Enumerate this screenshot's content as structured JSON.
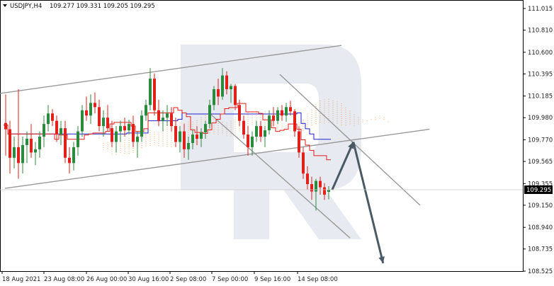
{
  "header": {
    "symbol": "USDJPY,H4",
    "ohlc": "109.277 109.331 109.205 109.295"
  },
  "colors": {
    "bull": "#2b8a3e",
    "bear": "#e0201b",
    "tenkan": "#e0201b",
    "kijun": "#1f22c8",
    "cloud": "#f4a460",
    "trendline": "#9a9a9a",
    "arrow": "#4a5a64",
    "watermark": "#e7ebf1",
    "price_tag_bg": "#000000"
  },
  "chart_data": {
    "type": "candlestick",
    "indicator": "ichimoku",
    "x_labels": [
      "18 Aug 2021",
      "23 Aug 08:00",
      "26 Aug 00:00",
      "30 Aug 16:00",
      "2 Sep 08:00",
      "7 Sep 00:00",
      "9 Sep 16:00",
      "14 Sep 08:00"
    ],
    "y_ticks": [
      "111.015",
      "110.810",
      "110.600",
      "110.395",
      "110.185",
      "109.980",
      "109.770",
      "109.565",
      "109.355",
      "109.150",
      "108.940",
      "108.735",
      "108.525"
    ],
    "ylim": [
      108.525,
      111.015
    ],
    "current_price": "109.295",
    "candles": [
      [
        109.93,
        110.2,
        109.62,
        109.87
      ],
      [
        109.87,
        109.95,
        109.45,
        109.6
      ],
      [
        109.6,
        109.8,
        109.5,
        109.7
      ],
      [
        109.7,
        110.25,
        109.4,
        109.55
      ],
      [
        109.55,
        109.8,
        109.45,
        109.72
      ],
      [
        109.72,
        109.85,
        109.55,
        109.78
      ],
      [
        109.78,
        109.92,
        109.6,
        109.65
      ],
      [
        109.65,
        109.75,
        109.53,
        109.68
      ],
      [
        109.68,
        109.85,
        109.6,
        109.8
      ],
      [
        109.8,
        110.0,
        109.7,
        109.92
      ],
      [
        109.92,
        110.1,
        109.85,
        110.02
      ],
      [
        110.02,
        110.06,
        109.9,
        109.95
      ],
      [
        109.95,
        110.0,
        109.75,
        109.82
      ],
      [
        109.82,
        109.95,
        109.72,
        109.88
      ],
      [
        109.88,
        109.95,
        109.55,
        109.6
      ],
      [
        109.6,
        109.7,
        109.45,
        109.55
      ],
      [
        109.55,
        109.75,
        109.48,
        109.7
      ],
      [
        109.7,
        109.9,
        109.62,
        109.85
      ],
      [
        109.85,
        110.1,
        109.8,
        110.05
      ],
      [
        110.05,
        110.18,
        109.95,
        110.0
      ],
      [
        110.0,
        110.2,
        109.92,
        110.12
      ],
      [
        110.12,
        110.22,
        110.02,
        110.08
      ],
      [
        110.08,
        110.15,
        109.85,
        109.9
      ],
      [
        109.9,
        110.05,
        109.8,
        109.98
      ],
      [
        109.98,
        110.1,
        109.85,
        109.88
      ],
      [
        109.88,
        109.95,
        109.7,
        109.75
      ],
      [
        109.75,
        109.9,
        109.65,
        109.85
      ],
      [
        109.85,
        109.95,
        109.75,
        109.9
      ],
      [
        109.9,
        109.98,
        109.8,
        109.86
      ],
      [
        109.86,
        109.96,
        109.82,
        109.92
      ],
      [
        109.92,
        110.0,
        109.7,
        109.75
      ],
      [
        109.75,
        109.85,
        109.6,
        109.8
      ],
      [
        109.8,
        110.05,
        109.75,
        110.0
      ],
      [
        110.0,
        110.15,
        109.95,
        110.1
      ],
      [
        110.1,
        110.45,
        110.05,
        110.35
      ],
      [
        110.35,
        110.4,
        110.0,
        110.05
      ],
      [
        110.05,
        110.15,
        109.9,
        109.95
      ],
      [
        109.95,
        110.05,
        109.85,
        109.98
      ],
      [
        109.98,
        110.1,
        109.9,
        110.02
      ],
      [
        110.02,
        110.08,
        109.85,
        109.9
      ],
      [
        109.9,
        109.98,
        109.7,
        109.75
      ],
      [
        109.75,
        109.9,
        109.65,
        109.85
      ],
      [
        109.85,
        109.92,
        109.6,
        109.68
      ],
      [
        109.68,
        109.8,
        109.58,
        109.74
      ],
      [
        109.74,
        109.86,
        109.68,
        109.82
      ],
      [
        109.82,
        109.9,
        109.72,
        109.78
      ],
      [
        109.78,
        109.88,
        109.7,
        109.84
      ],
      [
        109.84,
        109.95,
        109.78,
        109.92
      ],
      [
        109.92,
        110.15,
        109.88,
        110.1
      ],
      [
        110.1,
        110.28,
        110.05,
        110.25
      ],
      [
        110.25,
        110.35,
        110.1,
        110.18
      ],
      [
        110.18,
        110.45,
        110.15,
        110.38
      ],
      [
        110.38,
        110.42,
        110.2,
        110.25
      ],
      [
        110.25,
        110.3,
        110.12,
        110.28
      ],
      [
        110.28,
        110.3,
        110.05,
        110.1
      ],
      [
        110.1,
        110.15,
        109.9,
        109.95
      ],
      [
        109.95,
        110.0,
        109.78,
        109.82
      ],
      [
        109.82,
        109.9,
        109.62,
        109.7
      ],
      [
        109.7,
        109.85,
        109.62,
        109.8
      ],
      [
        109.8,
        109.95,
        109.75,
        109.9
      ],
      [
        109.9,
        109.95,
        109.75,
        109.8
      ],
      [
        109.8,
        109.9,
        109.7,
        109.86
      ],
      [
        109.86,
        110.05,
        109.82,
        110.0
      ],
      [
        110.0,
        110.08,
        109.9,
        109.95
      ],
      [
        109.95,
        110.08,
        109.92,
        110.05
      ],
      [
        110.05,
        110.1,
        109.95,
        110.0
      ],
      [
        110.0,
        110.12,
        109.94,
        110.08
      ],
      [
        110.08,
        110.14,
        110.0,
        110.04
      ],
      [
        110.04,
        110.06,
        109.8,
        109.85
      ],
      [
        109.85,
        109.9,
        109.6,
        109.65
      ],
      [
        109.65,
        109.7,
        109.4,
        109.45
      ],
      [
        109.45,
        109.52,
        109.3,
        109.35
      ],
      [
        109.35,
        109.42,
        109.2,
        109.28
      ],
      [
        109.28,
        109.4,
        109.1,
        109.38
      ],
      [
        109.38,
        109.42,
        109.25,
        109.32
      ],
      [
        109.32,
        109.36,
        109.2,
        109.25
      ],
      [
        109.277,
        109.331,
        109.205,
        109.295
      ]
    ]
  }
}
